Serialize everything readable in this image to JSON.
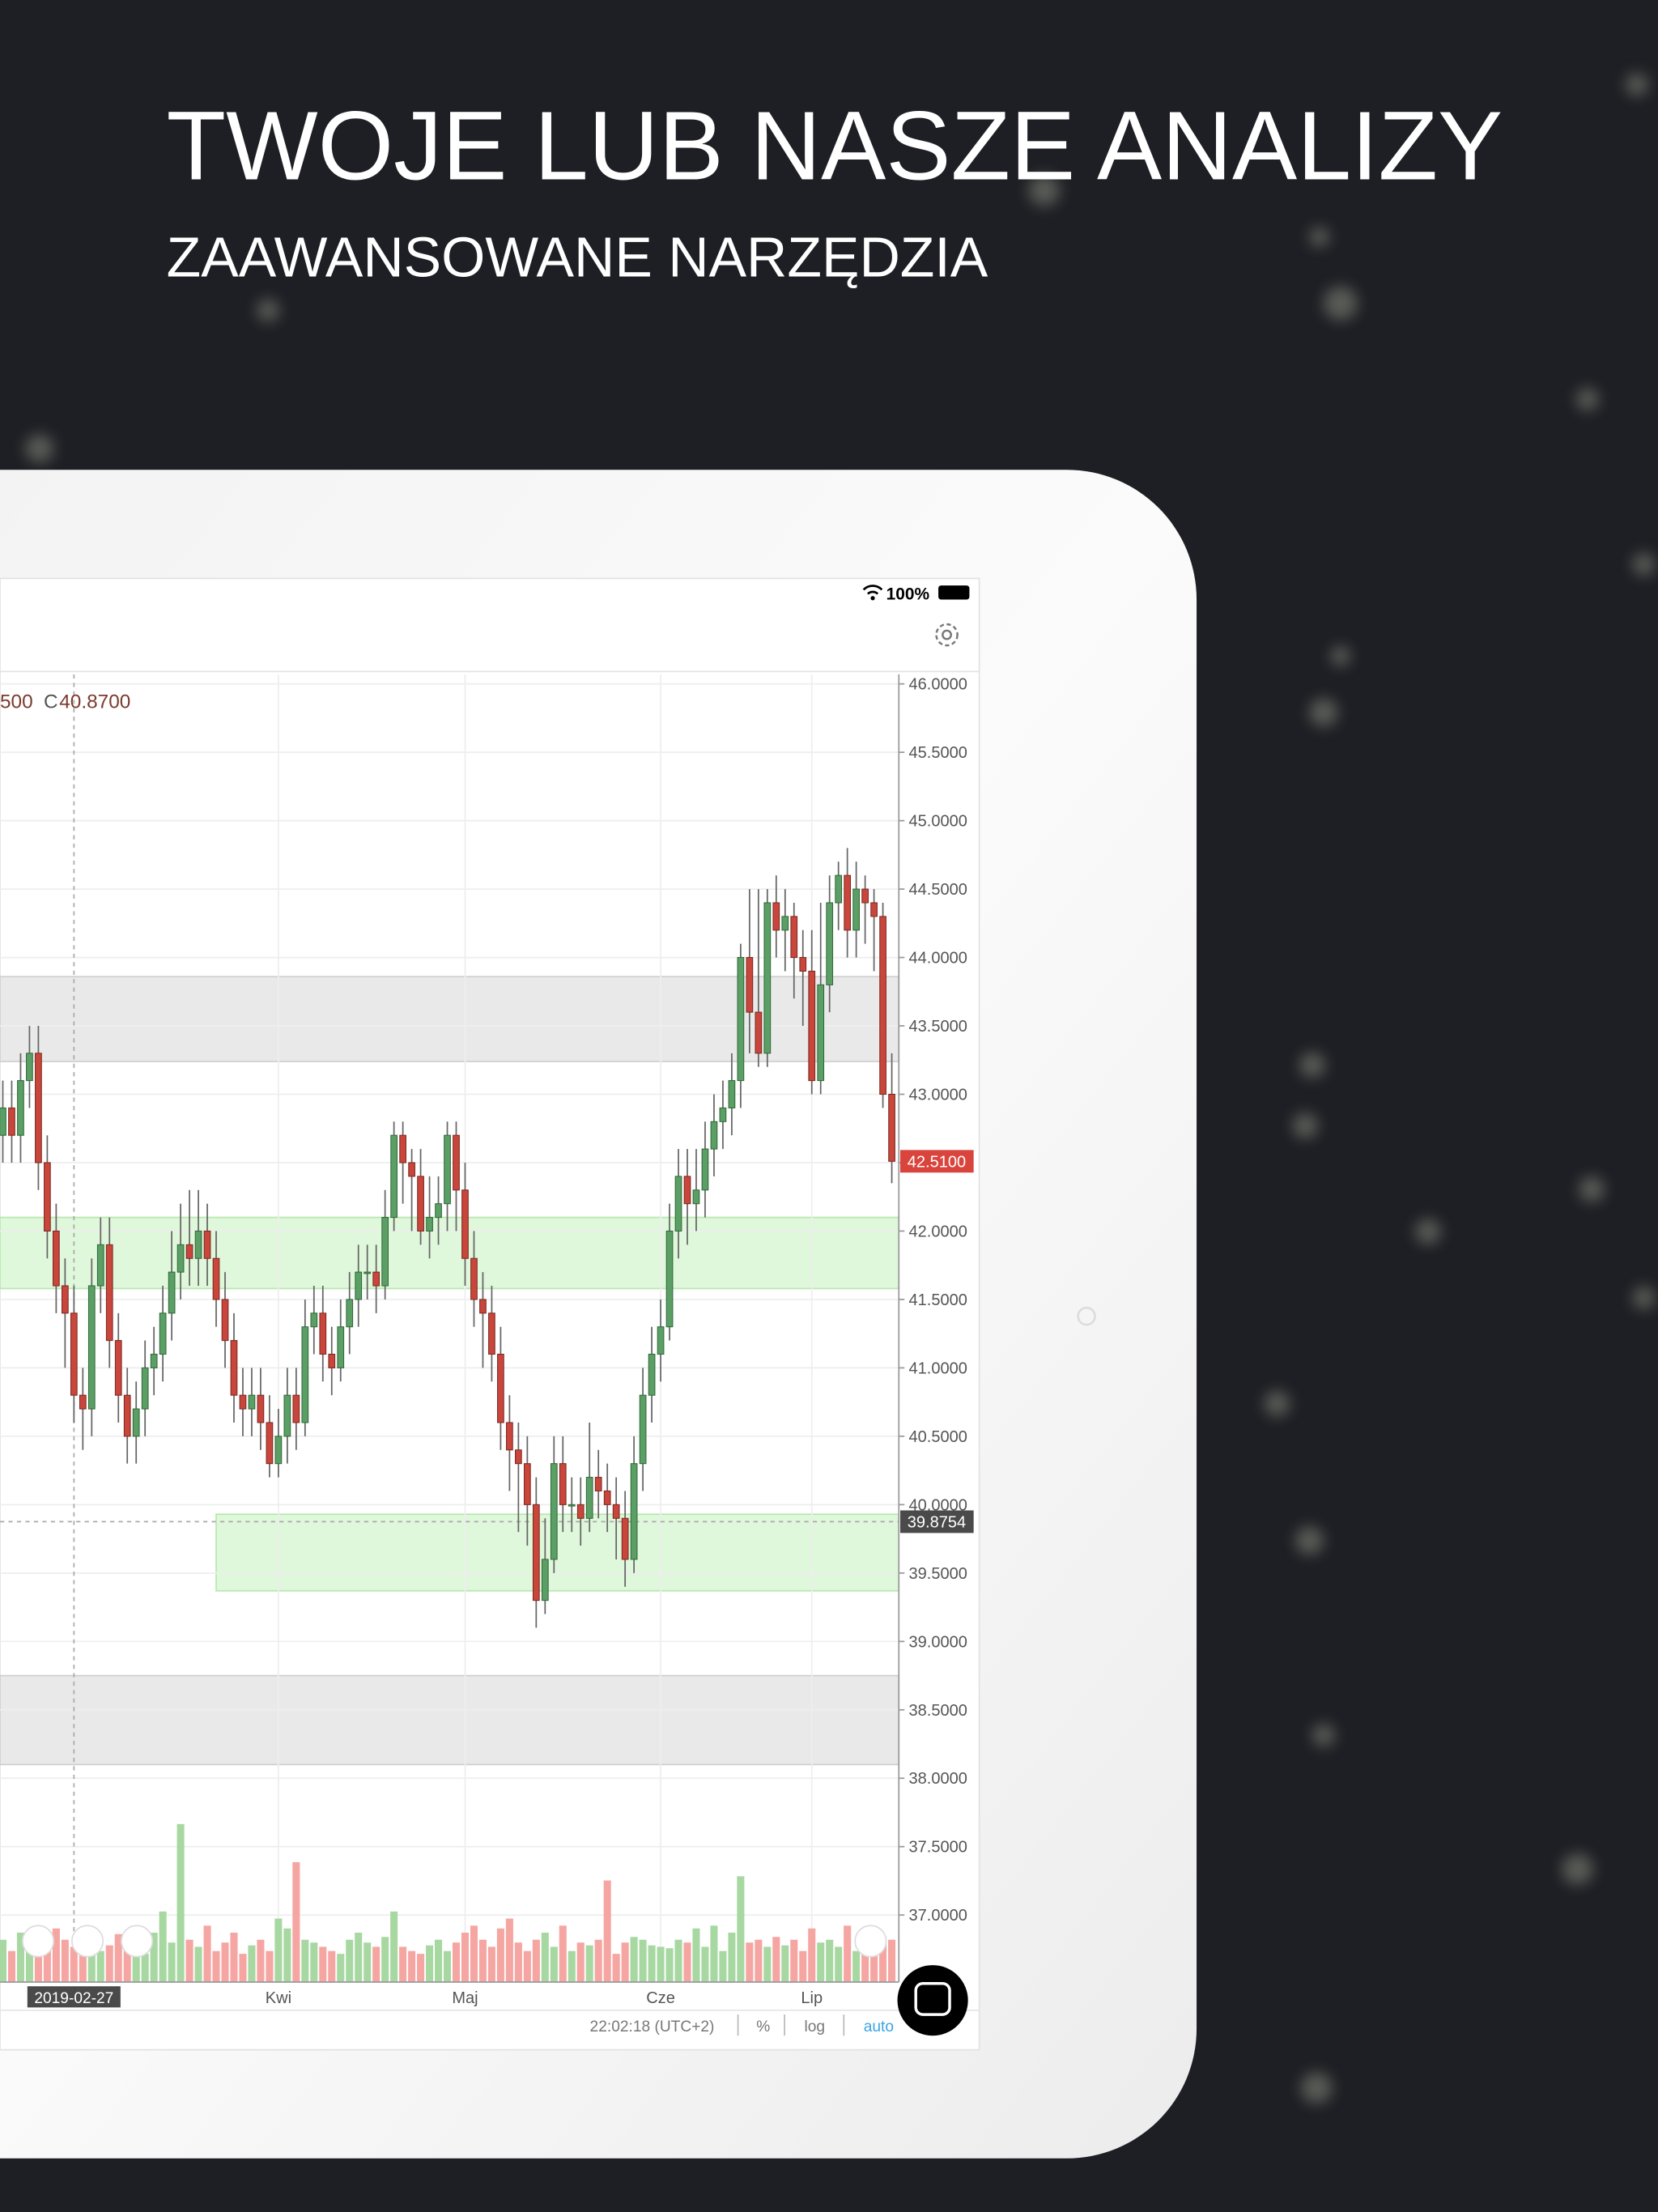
{
  "header": {
    "title": "TWOJE LUB NASZE ANALIZY",
    "subtitle": "ZAAWANSOWANE NARZĘDZIA"
  },
  "status": {
    "battery": "100%"
  },
  "toolbar": {
    "time": "22:02:18 (UTC+2)",
    "percent": "%",
    "log": "log",
    "auto": "auto"
  },
  "chart_data": {
    "type": "candlestick",
    "legend_text": {
      "partial": "500",
      "close_label": "C",
      "close_value": "40.8700"
    },
    "categories": [
      null,
      null,
      null,
      null,
      null,
      null,
      null,
      null,
      null,
      null,
      null,
      null,
      null,
      null,
      null,
      null,
      null,
      null,
      null,
      null,
      null,
      null,
      null,
      null,
      null,
      null,
      null,
      null,
      null,
      null,
      null,
      "Kwi",
      null,
      null,
      null,
      null,
      null,
      null,
      null,
      null,
      null,
      null,
      null,
      null,
      null,
      null,
      null,
      null,
      null,
      null,
      null,
      null,
      "Maj",
      null,
      null,
      null,
      null,
      null,
      null,
      null,
      null,
      null,
      null,
      null,
      null,
      null,
      null,
      null,
      null,
      null,
      null,
      null,
      null,
      null,
      "Cze",
      null,
      null,
      null,
      null,
      null,
      null,
      null,
      null,
      null,
      null,
      null,
      null,
      null,
      null,
      null,
      null,
      "Lip",
      null,
      null,
      null,
      null,
      null,
      null,
      null,
      null,
      null
    ],
    "crosshair": {
      "label": "2019-02-27",
      "price": 39.8754,
      "price_label": "39.8754"
    },
    "last_price": {
      "value": 42.51,
      "label": "42.5100",
      "color": "#d9453d"
    },
    "open": [
      42.7,
      42.9,
      42.7,
      43.1,
      43.3,
      42.5,
      42.0,
      41.6,
      41.4,
      40.8,
      40.7,
      41.6,
      41.9,
      41.2,
      40.8,
      40.5,
      40.7,
      41.0,
      41.1,
      41.4,
      41.7,
      41.9,
      41.8,
      42.0,
      41.8,
      41.5,
      41.2,
      40.8,
      40.7,
      40.8,
      40.6,
      40.3,
      40.5,
      40.8,
      40.6,
      41.3,
      41.4,
      41.1,
      41.0,
      41.3,
      41.5,
      41.7,
      41.7,
      41.6,
      42.1,
      42.7,
      42.5,
      42.4,
      42.0,
      42.1,
      42.2,
      42.7,
      42.3,
      41.8,
      41.5,
      41.4,
      41.1,
      40.6,
      40.4,
      40.3,
      40.0,
      39.3,
      39.6,
      40.3,
      40.0,
      40.0,
      39.9,
      40.2,
      40.1,
      40.0,
      39.9,
      39.6,
      40.3,
      40.8,
      41.1,
      41.3,
      42.0,
      42.4,
      42.2,
      42.3,
      42.6,
      42.8,
      42.9,
      43.1,
      44.0,
      43.6,
      43.3,
      44.4,
      44.2,
      44.3,
      44.0,
      43.9,
      43.1,
      43.8,
      44.4,
      44.6,
      44.2,
      44.5,
      44.4,
      44.3,
      43.0
    ],
    "high": [
      43.1,
      43.1,
      43.3,
      43.5,
      43.5,
      42.7,
      42.2,
      41.8,
      41.6,
      41.0,
      41.8,
      42.1,
      42.1,
      41.4,
      41.0,
      40.9,
      41.2,
      41.3,
      41.6,
      42.0,
      42.2,
      42.3,
      42.3,
      42.2,
      42.0,
      41.7,
      41.4,
      41.0,
      41.0,
      41.0,
      40.8,
      40.7,
      41.0,
      41.0,
      41.5,
      41.6,
      41.6,
      41.3,
      41.5,
      41.7,
      41.9,
      41.9,
      41.9,
      42.3,
      42.8,
      42.8,
      42.6,
      42.6,
      42.4,
      42.4,
      42.8,
      42.8,
      42.5,
      42.0,
      41.7,
      41.6,
      41.3,
      40.8,
      40.6,
      40.5,
      40.2,
      39.9,
      40.5,
      40.5,
      40.2,
      40.2,
      40.6,
      40.4,
      40.3,
      40.2,
      40.1,
      40.5,
      41.0,
      41.3,
      41.5,
      42.2,
      42.6,
      42.6,
      42.6,
      42.8,
      43.0,
      43.1,
      43.3,
      44.1,
      44.5,
      44.5,
      44.5,
      44.6,
      44.5,
      44.4,
      44.2,
      44.2,
      44.4,
      44.6,
      44.7,
      44.8,
      44.7,
      44.6,
      44.5,
      44.4,
      43.3
    ],
    "low": [
      42.5,
      42.5,
      42.5,
      42.9,
      42.3,
      41.8,
      41.4,
      41.0,
      40.6,
      40.4,
      40.5,
      41.4,
      41.0,
      40.6,
      40.3,
      40.3,
      40.5,
      40.8,
      40.9,
      41.2,
      41.5,
      41.6,
      41.6,
      41.6,
      41.3,
      41.0,
      40.6,
      40.5,
      40.5,
      40.4,
      40.2,
      40.2,
      40.3,
      40.4,
      40.5,
      41.1,
      40.9,
      40.8,
      40.9,
      41.1,
      41.3,
      41.5,
      41.4,
      41.5,
      42.0,
      42.2,
      42.0,
      41.9,
      41.8,
      41.9,
      42.0,
      42.0,
      41.6,
      41.3,
      41.0,
      40.9,
      40.4,
      40.1,
      39.8,
      39.7,
      39.1,
      39.2,
      39.5,
      39.8,
      39.8,
      39.7,
      39.8,
      39.9,
      39.8,
      39.6,
      39.4,
      39.5,
      40.1,
      40.6,
      40.9,
      41.2,
      41.8,
      41.9,
      42.0,
      42.1,
      42.4,
      42.6,
      42.7,
      42.9,
      43.3,
      43.2,
      43.2,
      44.0,
      43.9,
      43.7,
      43.5,
      43.0,
      43.0,
      43.6,
      44.2,
      44.0,
      44.0,
      44.1,
      43.9,
      42.9,
      42.35
    ],
    "close": [
      42.9,
      42.7,
      43.1,
      43.3,
      42.5,
      42.0,
      41.6,
      41.4,
      40.8,
      40.7,
      41.6,
      41.9,
      41.2,
      40.8,
      40.5,
      40.7,
      41.0,
      41.1,
      41.4,
      41.7,
      41.9,
      41.8,
      42.0,
      41.8,
      41.5,
      41.2,
      40.8,
      40.7,
      40.8,
      40.6,
      40.3,
      40.5,
      40.8,
      40.6,
      41.3,
      41.4,
      41.1,
      41.0,
      41.3,
      41.5,
      41.7,
      41.7,
      41.6,
      42.1,
      42.7,
      42.5,
      42.4,
      42.0,
      42.1,
      42.2,
      42.7,
      42.3,
      41.8,
      41.5,
      41.4,
      41.1,
      40.6,
      40.4,
      40.3,
      40.0,
      39.3,
      39.6,
      40.3,
      40.0,
      40.0,
      39.9,
      40.2,
      40.1,
      40.0,
      39.9,
      39.6,
      40.3,
      40.8,
      41.1,
      41.3,
      42.0,
      42.4,
      42.2,
      42.3,
      42.6,
      42.8,
      42.9,
      43.1,
      44.0,
      43.6,
      43.3,
      44.4,
      44.2,
      44.3,
      44.0,
      43.9,
      43.1,
      43.8,
      44.4,
      44.6,
      44.2,
      44.5,
      44.4,
      44.3,
      43.0,
      42.51
    ],
    "volume": [
      30,
      22,
      35,
      28,
      40,
      25,
      38,
      30,
      25,
      32,
      28,
      22,
      26,
      34,
      30,
      25,
      20,
      35,
      50,
      28,
      112,
      30,
      25,
      40,
      22,
      28,
      35,
      20,
      26,
      30,
      22,
      45,
      38,
      85,
      30,
      28,
      25,
      22,
      20,
      30,
      35,
      28,
      25,
      32,
      50,
      25,
      22,
      20,
      26,
      30,
      22,
      28,
      35,
      40,
      30,
      25,
      38,
      45,
      28,
      22,
      30,
      35,
      25,
      40,
      22,
      28,
      26,
      30,
      72,
      20,
      28,
      32,
      30,
      26,
      25,
      24,
      30,
      28,
      38,
      25,
      40,
      22,
      35,
      75,
      28,
      30,
      25,
      32,
      26,
      30,
      22,
      38,
      28,
      30,
      25,
      40,
      22,
      26,
      35,
      28,
      30
    ],
    "up_color": "#5c9f66",
    "down_color": "#c8463c",
    "zones": [
      {
        "from": 43.24,
        "to": 43.86,
        "color": "#e9e9e9"
      },
      {
        "from": 41.58,
        "to": 42.1,
        "color": "#dff7da"
      },
      {
        "from": 39.37,
        "to": 39.93,
        "start": 24,
        "color": "#dff7da"
      },
      {
        "from": 38.1,
        "to": 38.75,
        "color": "#e9e9e9"
      }
    ],
    "ylim": [
      36.51,
      46.07
    ],
    "yticks": [
      {
        "value": 46,
        "label": "46.0000"
      },
      {
        "value": 45.5,
        "label": "45.5000"
      },
      {
        "value": 45,
        "label": "45.0000"
      },
      {
        "value": 44.5,
        "label": "44.5000"
      },
      {
        "value": 44,
        "label": "44.0000"
      },
      {
        "value": 43.5,
        "label": "43.5000"
      },
      {
        "value": 43,
        "label": "43.0000"
      },
      {
        "value": 42.5,
        "label": "42.5000"
      },
      {
        "value": 42,
        "label": "42.0000"
      },
      {
        "value": 41.5,
        "label": "41.5000"
      },
      {
        "value": 41,
        "label": "41.0000"
      },
      {
        "value": 40.5,
        "label": "40.5000"
      },
      {
        "value": 40,
        "label": "40.0000"
      },
      {
        "value": 39.5,
        "label": "39.5000"
      },
      {
        "value": 39,
        "label": "39.0000"
      },
      {
        "value": 38.5,
        "label": "38.5000"
      },
      {
        "value": 38,
        "label": "38.0000"
      },
      {
        "value": 37.5,
        "label": "37.5000"
      },
      {
        "value": 37,
        "label": "37.0000"
      }
    ],
    "grid": true
  }
}
